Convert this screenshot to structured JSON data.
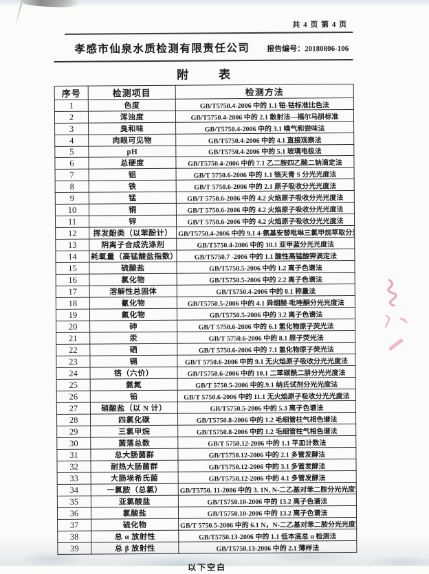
{
  "page": {
    "page_info": "共 4 页 第 4 页",
    "company": "孝感市仙泉水质检测有限责任公司",
    "report_no": "报告编号：20180806-106",
    "appendix_title_char1": "附",
    "appendix_title_char2": "表",
    "footer_note": "以下空白"
  },
  "colors": {
    "stamp_pink": "#d express5a8c"
  },
  "table": {
    "headers": [
      "序号",
      "检测项目",
      "检测方法"
    ],
    "rows": [
      [
        "1",
        "色度",
        "GB/T5750.4-2006 中的 1.1 铂-钴标准比色法"
      ],
      [
        "2",
        "浑浊度",
        "GB/T5750.4-2006 中的 2.1 散射法—福尔马肼标准"
      ],
      [
        "3",
        "臭和味",
        "GB/T5750.4-2006 中的 3.1 嗅气和尝味法"
      ],
      [
        "4",
        "肉眼可见物",
        "GB/T5750.4-2006 中的 4.1 直接观察法"
      ],
      [
        "5",
        "pH",
        "GB/T5750.4-2006 中的 5.1 玻璃电极法"
      ],
      [
        "6",
        "总硬度",
        "GB/T5750.4-2006 中的 7.1 乙二胺四乙酸二钠滴定法"
      ],
      [
        "7",
        "铝",
        "GB/T 5750.6-2006 中的 1.1 铬天青 S 分光光度法"
      ],
      [
        "8",
        "铁",
        "GB/T 5750.6-2006 中的 2.1 原子吸收分光光度法"
      ],
      [
        "9",
        "锰",
        "GB/T 5750.6-2006 中的 4.2 火焰原子吸收分光光度法"
      ],
      [
        "10",
        "铜",
        "GB/T 5750.6-2006 中的 4.2 火焰原子吸收分光光度法"
      ],
      [
        "11",
        "锌",
        "GB/T 5750.6-2006 中的 4.2 火焰原子吸收分光光度法"
      ],
      [
        "12",
        "挥发酚类（以苯酚计）",
        "GB/T5750.4-2006 中的 9.1 4-氨基安替吡啉三氯甲烷萃取分光光度法"
      ],
      [
        "13",
        "阴离子合成洗涤剂",
        "GB/T5750.4-2006 中的 10.1 亚甲蓝分光光度法"
      ],
      [
        "14",
        "耗氧量（高锰酸盐指数）",
        "GB/T5750.7 -2006 中的 1.1 酸性高锰酸钾滴定法"
      ],
      [
        "15",
        "硫酸盐",
        "GB/T5750.5-2006 中的 1.2 离子色谱法"
      ],
      [
        "16",
        "氯化物",
        "GB/T5750.5-2006 中的 2.2 离子色谱法"
      ],
      [
        "17",
        "溶解性总固体",
        "GB/T5750.4-2006 中的 8.1 称量法"
      ],
      [
        "18",
        "氰化物",
        "GB/T5750.5-2006 中的 4.1 异烟酸-吡唑酮分光光度法"
      ],
      [
        "19",
        "氟化物",
        "GB/T5750.5-2006 中的 3.2 离子色谱法"
      ],
      [
        "20",
        "砷",
        "GB/T 5750.6-2006 中的 6.1 氢化物原子荧光法"
      ],
      [
        "21",
        "汞",
        "GB/T 5750.6-2006 中的 8.1 原子荧光法"
      ],
      [
        "22",
        "硒",
        "GB/T 5750.6-2006 中的 7.1 氢化物原子荧光法"
      ],
      [
        "23",
        "镉",
        "GB/T 5750.6-2006 中的 9.1 无火焰原子吸收分光光度法"
      ],
      [
        "24",
        "铬（六价）",
        "GB/T5750.6-2006 中的 10.1 二苯碳酰二肼分光光度法"
      ],
      [
        "25",
        "氨氮",
        "GB/T 5750.5-2006 中的.9.1 纳氏试剂分光光度法"
      ],
      [
        "26",
        "铅",
        "GB/T 5750.6-2006 中的 11.1 无火焰原子吸收分光光度法"
      ],
      [
        "27",
        "硝酸盐（以 N 计）",
        "GB/T5750.5-2006 中的 5.3 离子色谱法"
      ],
      [
        "28",
        "四氯化碳",
        "GB/T5750.8-2006 中的 1.2 毛细管柱气相色谱法"
      ],
      [
        "29",
        "三氯甲烷",
        "GB/T5750.8-2006 中的 1.2 毛细管柱气相色谱法"
      ],
      [
        "30",
        "菌落总数",
        "GB/T 5750.12-2006 中的 1.1 平皿计数法"
      ],
      [
        "31",
        "总大肠菌群",
        "GB/T5750.12-2006 中的 2.1 多管发酵法"
      ],
      [
        "32",
        "耐热大肠菌群",
        "GB/T5750.12-2006 中的 3.1 多管发酵法"
      ],
      [
        "33",
        "大肠埃希氏菌",
        "GB/T5750.12-2006 中的 4.1 多管发酵法"
      ],
      [
        "34",
        "一氯胺（总氯）",
        "GB/T5750. 11-2006 中的 3. 1N, N-二乙基对苯二胺分光光度法"
      ],
      [
        "35",
        "亚氯酸盐",
        "GB/T5750.10-2006 中的 13.2 离子色谱法"
      ],
      [
        "36",
        "氯酸盐",
        "GB/T5750.10-2006 中的 13.2 离子色谱法"
      ],
      [
        "37",
        "硫化物",
        "GB/T 5750.5-2006 中的 6.1 N，N-二乙基对苯二胺分光光度法"
      ],
      [
        "38",
        "总 α 放射性",
        "GB/T5750.13-2006 中的 1.1 低本底总 α 检测法"
      ],
      [
        "39",
        "总 β 放射性",
        "GB/T5750.13-2006 中的 2.1 薄样法"
      ]
    ]
  }
}
